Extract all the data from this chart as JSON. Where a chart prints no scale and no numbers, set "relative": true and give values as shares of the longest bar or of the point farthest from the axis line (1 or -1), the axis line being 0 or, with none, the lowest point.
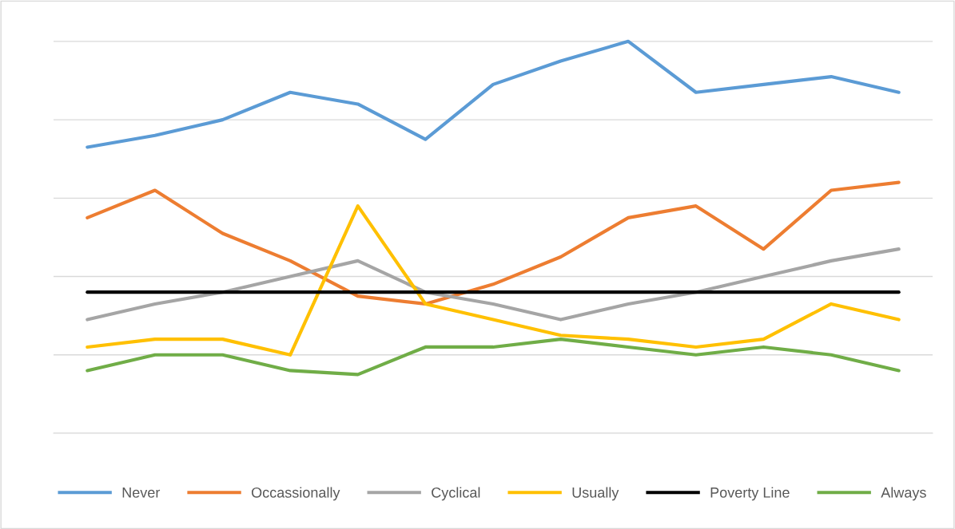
{
  "chart_data": {
    "type": "line",
    "relative": true,
    "categories": [
      null,
      null,
      null,
      null,
      null,
      null,
      null,
      null,
      null,
      null,
      null,
      null,
      null
    ],
    "series": [
      {
        "name": "Never",
        "color": "#5b9bd5",
        "values": [
          0.73,
          0.76,
          0.8,
          0.87,
          0.84,
          0.75,
          0.89,
          0.95,
          1,
          0.87,
          0.89,
          0.91,
          0.87
        ]
      },
      {
        "name": "Occassionally",
        "color": "#ed7d31",
        "values": [
          0.55,
          0.62,
          0.51,
          0.44,
          0.35,
          0.33,
          0.38,
          0.45,
          0.55,
          0.58,
          0.47,
          0.62,
          0.64
        ]
      },
      {
        "name": "Cyclical",
        "color": "#a5a5a5",
        "values": [
          0.29,
          0.33,
          0.36,
          0.4,
          0.44,
          0.36,
          0.33,
          0.29,
          0.33,
          0.36,
          0.4,
          0.44,
          0.47
        ]
      },
      {
        "name": "Usually",
        "color": "#ffc000",
        "values": [
          0.22,
          0.24,
          0.24,
          0.2,
          0.58,
          0.33,
          0.29,
          0.25,
          0.24,
          0.22,
          0.24,
          0.33,
          0.29
        ]
      },
      {
        "name": "Poverty Line",
        "color": "#000000",
        "values": [
          0.36,
          0.36,
          0.36,
          0.36,
          0.36,
          0.36,
          0.36,
          0.36,
          0.36,
          0.36,
          0.36,
          0.36,
          0.36
        ]
      },
      {
        "name": "Always",
        "color": "#70ad47",
        "values": [
          0.16,
          0.2,
          0.2,
          0.16,
          0.15,
          0.22,
          0.22,
          0.24,
          0.22,
          0.2,
          0.22,
          0.2,
          0.16
        ]
      }
    ],
    "grid": "y",
    "legend": "bottom",
    "marker": "none",
    "line_style": "solid"
  }
}
